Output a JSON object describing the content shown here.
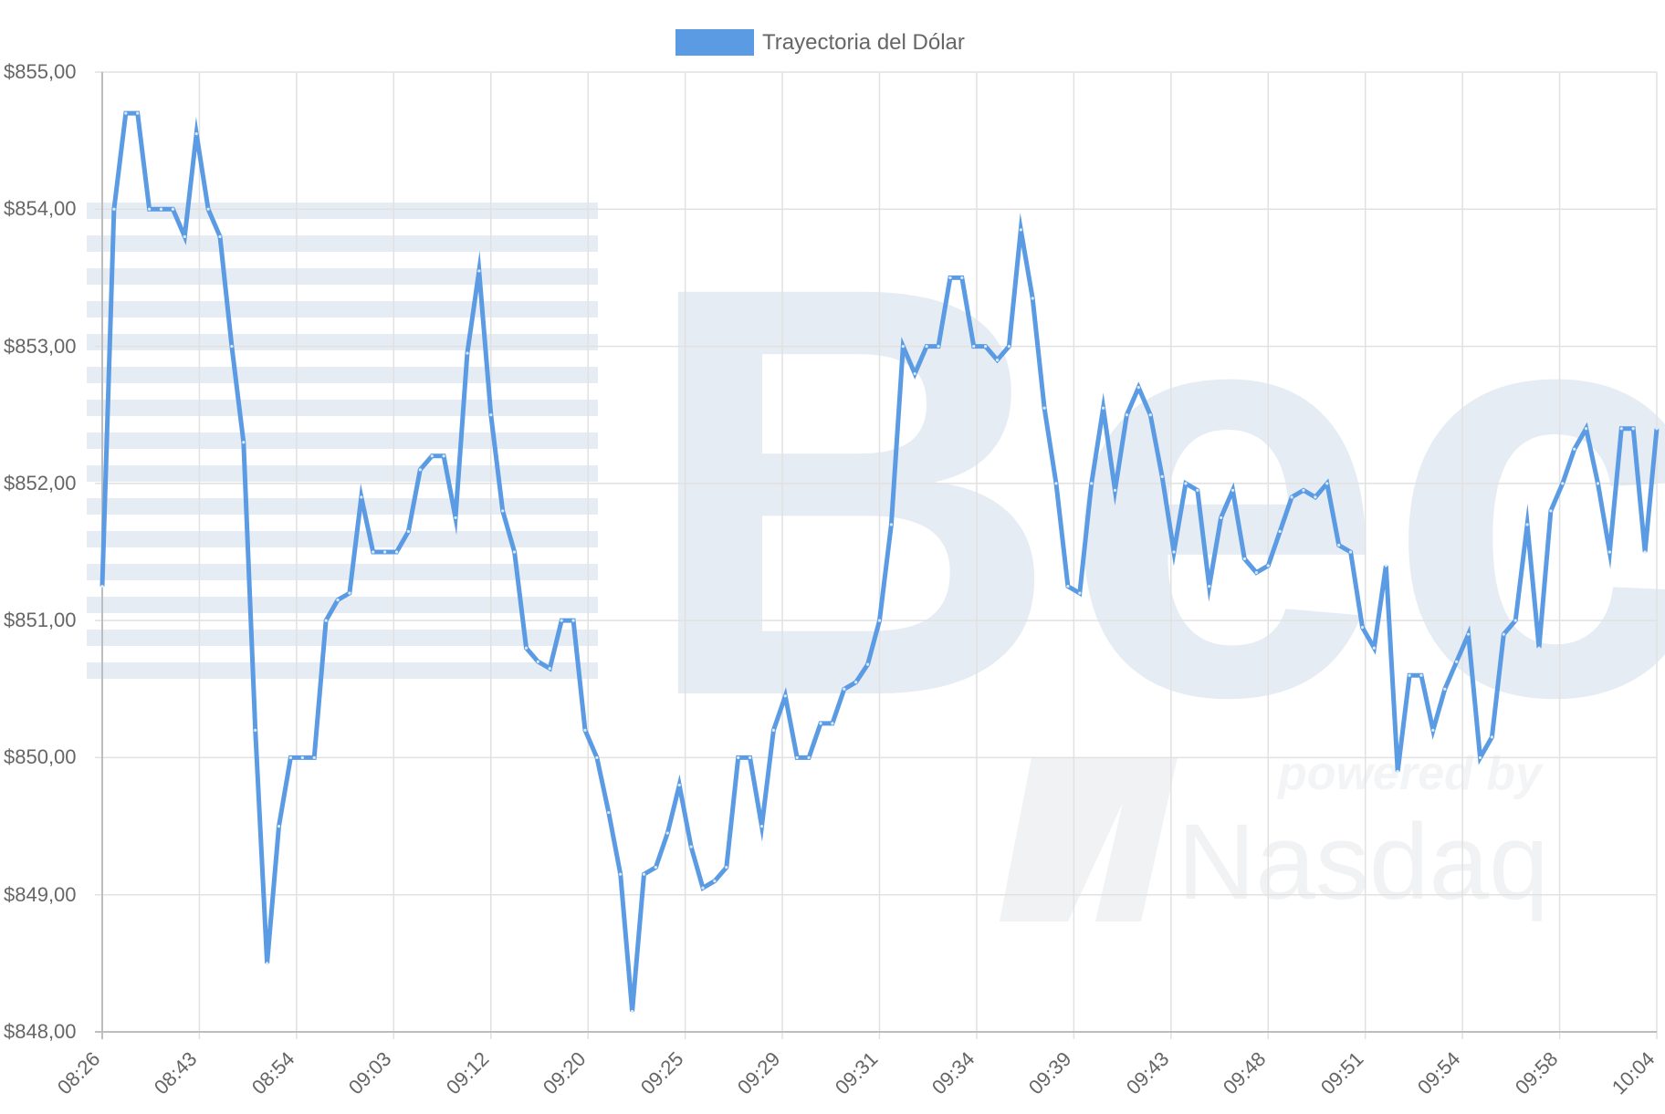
{
  "chart_data": {
    "type": "line",
    "legend": {
      "position": "top",
      "entries": [
        {
          "label": "Trayectoria del Dólar",
          "color": "#5a9be3"
        }
      ]
    },
    "series": [
      {
        "name": "Trayectoria del Dólar",
        "color": "#5a9be3",
        "values": [
          851.25,
          854.0,
          854.7,
          854.7,
          854.0,
          854.0,
          854.0,
          853.8,
          854.55,
          854.0,
          853.8,
          853.0,
          852.3,
          850.2,
          848.5,
          849.5,
          850.0,
          850.0,
          850.0,
          851.0,
          851.15,
          851.2,
          851.9,
          851.5,
          851.5,
          851.5,
          851.65,
          852.1,
          852.2,
          852.2,
          851.75,
          852.95,
          853.55,
          852.5,
          851.8,
          851.5,
          850.8,
          850.7,
          850.65,
          851.0,
          851.0,
          850.2,
          850.0,
          849.6,
          849.15,
          848.15,
          849.15,
          849.2,
          849.45,
          849.8,
          849.35,
          849.05,
          849.1,
          849.2,
          850.0,
          850.0,
          849.5,
          850.2,
          850.45,
          850.0,
          850.0,
          850.25,
          850.25,
          850.5,
          850.55,
          850.68,
          851.0,
          851.7,
          853.0,
          852.8,
          853.0,
          853.0,
          853.5,
          853.5,
          853.0,
          853.0,
          852.9,
          853.0,
          853.85,
          853.35,
          852.55,
          852.0,
          851.25,
          851.2,
          852.0,
          852.55,
          851.95,
          852.5,
          852.7,
          852.5,
          852.05,
          851.5,
          852.0,
          851.95,
          851.25,
          851.75,
          851.95,
          851.45,
          851.35,
          851.4,
          851.65,
          851.9,
          851.95,
          851.9,
          852.0,
          851.55,
          851.5,
          850.95,
          850.8,
          851.4,
          849.9,
          850.6,
          850.6,
          850.2,
          850.5,
          850.7,
          850.9,
          850.0,
          850.15,
          850.9,
          851.0,
          851.7,
          850.8,
          851.8,
          852.0,
          852.25,
          852.4,
          852.0,
          851.5,
          852.4,
          852.4,
          851.5,
          852.4
        ]
      }
    ],
    "x_tick_labels": [
      "08:26",
      "08:43",
      "08:54",
      "09:03",
      "09:12",
      "09:20",
      "09:25",
      "09:29",
      "09:31",
      "09:34",
      "09:39",
      "09:43",
      "09:48",
      "09:51",
      "09:54",
      "09:58",
      "10:04"
    ],
    "ylim": [
      848,
      855
    ],
    "y_tick_values": [
      848,
      849,
      850,
      851,
      852,
      853,
      854,
      855
    ],
    "y_tick_labels": [
      "$848,00",
      "$849,00",
      "$850,00",
      "$851,00",
      "$852,00",
      "$853,00",
      "$854,00",
      "$855,00"
    ],
    "grid": true,
    "watermark": {
      "main": "Bec",
      "sub1": "powered by",
      "sub2": "Nasdaq"
    }
  }
}
